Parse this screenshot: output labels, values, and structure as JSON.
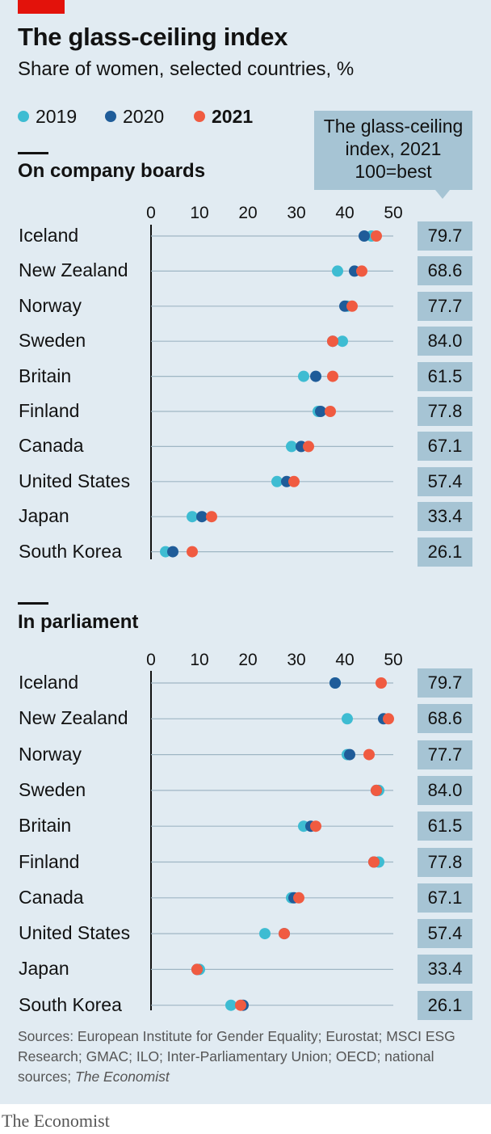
{
  "header": {
    "title": "The glass-ceiling index",
    "subtitle": "Share of women, selected countries, %"
  },
  "legend": [
    {
      "label": "2019",
      "color": "#3ebcd2"
    },
    {
      "label": "2020",
      "color": "#1f5c99"
    },
    {
      "label": "2021",
      "color": "#f05b41"
    }
  ],
  "index_box": {
    "line1": "The glass-ceiling",
    "line2": "index, 2021",
    "line3": "100=best"
  },
  "sections": {
    "boards": "On company boards",
    "parliament": "In parliament"
  },
  "colors": {
    "y2019": "#3ebcd2",
    "y2020": "#1f5c99",
    "y2021": "#f05b41",
    "panel": "#e1ebf2",
    "box": "#a6c4d4"
  },
  "chart_data": [
    {
      "type": "scatter",
      "title": "On company boards",
      "x_ticks": [
        0,
        10,
        20,
        30,
        40,
        50
      ],
      "xlim": [
        0,
        50
      ],
      "categories": [
        "Iceland",
        "New Zealand",
        "Norway",
        "Sweden",
        "Britain",
        "Finland",
        "Canada",
        "United States",
        "Japan",
        "South Korea"
      ],
      "series": [
        {
          "name": "2019",
          "values": [
            45.5,
            38.5,
            40.5,
            39.5,
            31.5,
            34.5,
            29,
            26,
            8.5,
            3
          ]
        },
        {
          "name": "2020",
          "values": [
            44,
            42,
            40,
            37.5,
            34,
            35,
            31,
            28,
            10.5,
            4.5
          ]
        },
        {
          "name": "2021",
          "values": [
            46.5,
            43.5,
            41.5,
            37.5,
            37.5,
            37,
            32.5,
            29.5,
            12.5,
            8.5
          ]
        }
      ],
      "index_values": [
        "79.7",
        "68.6",
        "77.7",
        "84.0",
        "61.5",
        "77.8",
        "67.1",
        "57.4",
        "33.4",
        "26.1"
      ]
    },
    {
      "type": "scatter",
      "title": "In parliament",
      "x_ticks": [
        0,
        10,
        20,
        30,
        40,
        50
      ],
      "xlim": [
        0,
        50
      ],
      "categories": [
        "Iceland",
        "New Zealand",
        "Norway",
        "Sweden",
        "Britain",
        "Finland",
        "Canada",
        "United States",
        "Japan",
        "South Korea"
      ],
      "series": [
        {
          "name": "2019",
          "values": [
            38,
            40.5,
            40.5,
            47,
            31.5,
            47,
            29,
            23.5,
            10,
            16.5
          ]
        },
        {
          "name": "2020",
          "values": [
            38,
            48,
            41,
            46.5,
            33,
            46,
            29.5,
            27.5,
            9.5,
            19
          ]
        },
        {
          "name": "2021",
          "values": [
            47.5,
            49,
            45,
            46.5,
            34,
            46,
            30.5,
            27.5,
            9.5,
            18.5
          ]
        }
      ],
      "index_values": [
        "79.7",
        "68.6",
        "77.7",
        "84.0",
        "61.5",
        "77.8",
        "67.1",
        "57.4",
        "33.4",
        "26.1"
      ]
    }
  ],
  "footer": {
    "sources": "Sources: European Institute for Gender Equality; Eurostat; MSCI ESG Research; GMAC; ILO; Inter-Parliamentary Union; OECD; national sources;",
    "sources_italic": "The Economist",
    "brand": "The Economist"
  }
}
